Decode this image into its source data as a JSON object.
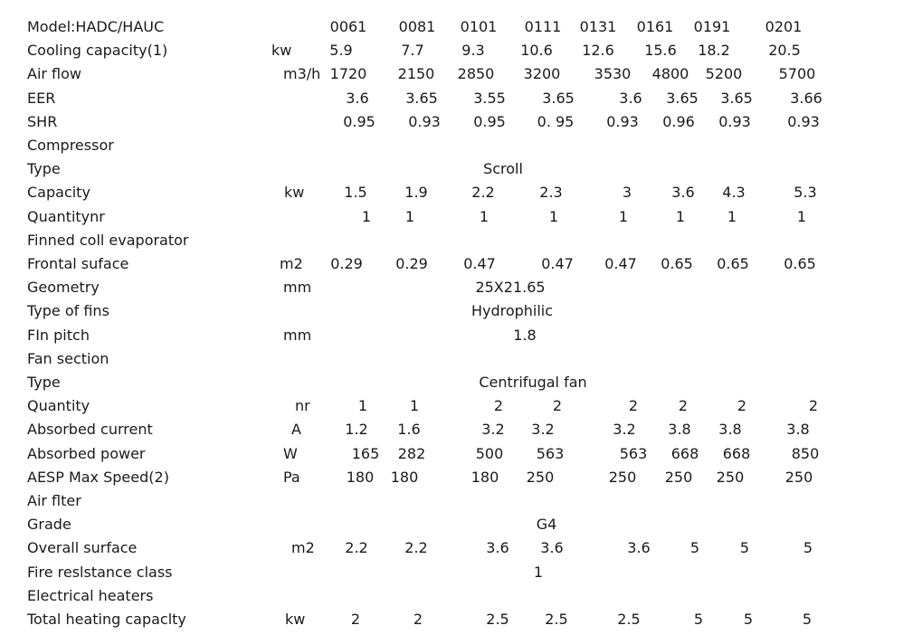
{
  "table": {
    "rows": [
      {
        "label": "Model:HADC/HAUC",
        "unit": "",
        "values": [
          "0061",
          "0081",
          "0101",
          "0111",
          "0131",
          "0161",
          "0191",
          "0201"
        ]
      },
      {
        "label": "Cooling capacity(1)",
        "unit": "kw",
        "values": [
          "5.9",
          "7.7",
          "9.3",
          "10.6",
          "12.6",
          "15.6",
          "18.2",
          "20.5"
        ]
      },
      {
        "label": "Air flow",
        "unit": "m3/h",
        "values": [
          "1720",
          "2150",
          "2850",
          "3200",
          "3530",
          "4800",
          "5200",
          "5700"
        ]
      },
      {
        "label": "EER",
        "unit": "",
        "values": [
          "3.6",
          "3.65",
          "3.55",
          "3.65",
          "3.6",
          "3.65",
          "3.65",
          "3.66"
        ]
      },
      {
        "label": "SHR",
        "unit": "",
        "values": [
          "0.95",
          "0.93",
          "0.95",
          "0. 95",
          "0.93",
          "0.96",
          "0.93",
          "0.93"
        ]
      },
      {
        "label": "Compressor",
        "unit": "",
        "values": []
      },
      {
        "label": "Type",
        "unit": "",
        "values": [
          "Scroll"
        ]
      },
      {
        "label": "Capacity",
        "unit": "kw",
        "values": [
          "1.5",
          "1.9",
          "2.2",
          "2.3",
          "3",
          "3.6",
          "4.3",
          "5.3"
        ]
      },
      {
        "label": "Quantitynr",
        "unit": "",
        "values": [
          "1",
          "1",
          "1",
          "1",
          "1",
          "1",
          "1",
          "1"
        ]
      },
      {
        "label": "Finned coll evaporator",
        "unit": "",
        "values": []
      },
      {
        "label": "Frontal suface",
        "unit": "m2",
        "values": [
          "0.29",
          "0.29",
          "0.47",
          "0.47",
          "0.47",
          "0.65",
          "0.65",
          "0.65"
        ]
      },
      {
        "label": "Geometry",
        "unit": "mm",
        "values": [
          "25X21.65"
        ]
      },
      {
        "label": "Type of fins",
        "unit": "",
        "values": [
          "Hydrophilic"
        ]
      },
      {
        "label": "FIn pitch",
        "unit": "mm",
        "values": [
          "1.8"
        ]
      },
      {
        "label": "Fan section",
        "unit": "",
        "values": []
      },
      {
        "label": "Type",
        "unit": "",
        "values": [
          "Centrifugal fan"
        ]
      },
      {
        "label": "Quantity",
        "unit": "nr",
        "values": [
          "1",
          "1",
          "2",
          "2",
          "2",
          "2",
          "2",
          "2"
        ]
      },
      {
        "label": "Absorbed current",
        "unit": "A",
        "values": [
          "1.2",
          "1.6",
          "3.2",
          "3.2",
          "3.2",
          "3.8",
          "3.8",
          "3.8"
        ]
      },
      {
        "label": "Absorbed power",
        "unit": "W",
        "values": [
          "165",
          "282",
          "500",
          "563",
          "563",
          "668",
          "668",
          "850"
        ]
      },
      {
        "label": "AESP Max Speed(2)",
        "unit": "Pa",
        "values": [
          "180",
          "180",
          "180",
          "250",
          "250",
          "250",
          "250",
          "250"
        ]
      },
      {
        "label": "Air flter",
        "unit": "",
        "values": []
      },
      {
        "label": "Grade",
        "unit": "",
        "values": [
          "G4"
        ]
      },
      {
        "label": "Overall surface",
        "unit": "m2",
        "values": [
          "2.2",
          "2.2",
          "3.6",
          "3.6",
          "3.6",
          "5",
          "5",
          "5"
        ]
      },
      {
        "label": "Fire reslstance class",
        "unit": "",
        "values": [
          "1"
        ]
      },
      {
        "label": "Electrical heaters",
        "unit": "",
        "values": []
      },
      {
        "label": "Total heating capaclty",
        "unit": "kw",
        "values": [
          "2",
          "2",
          "2.5",
          "2.5",
          "2.5",
          "5",
          "5",
          "5"
        ]
      }
    ]
  }
}
